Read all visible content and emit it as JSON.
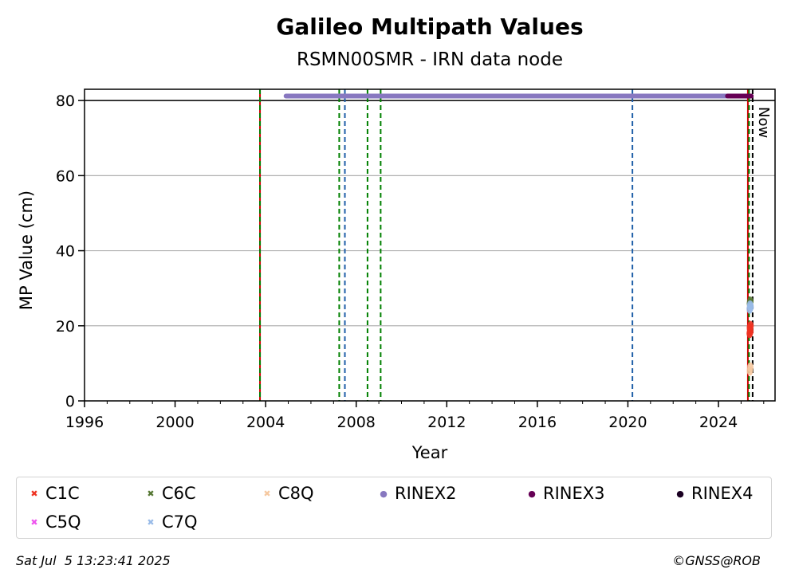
{
  "chart_data": {
    "type": "scatter",
    "title": "Galileo Multipath Values",
    "subtitle": "RSMN00SMR - IRN data node",
    "xlabel": "Year",
    "ylabel": "MP Value (cm)",
    "xlim": [
      1996,
      2026.5
    ],
    "ylim": [
      0,
      83
    ],
    "x_ticks": [
      1996,
      2000,
      2004,
      2008,
      2012,
      2016,
      2020,
      2024
    ],
    "y_ticks": [
      0,
      20,
      40,
      60,
      80
    ],
    "grid": "horizontal",
    "legend_position": "below",
    "reference_line_y": 80,
    "now_label": "Now",
    "now_x": 2025.51,
    "event_lines": [
      {
        "x": 2003.75,
        "color": "#cc0000",
        "style": "solid"
      },
      {
        "x": 2003.75,
        "color": "#008000",
        "style": "dashed"
      },
      {
        "x": 2007.25,
        "color": "#008000",
        "style": "dashed"
      },
      {
        "x": 2007.5,
        "color": "#1f5fa8",
        "style": "dashed"
      },
      {
        "x": 2008.5,
        "color": "#008000",
        "style": "dashed"
      },
      {
        "x": 2009.08,
        "color": "#008000",
        "style": "dashed"
      },
      {
        "x": 2020.2,
        "color": "#1f5fa8",
        "style": "dashed"
      },
      {
        "x": 2025.3,
        "color": "#cc0000",
        "style": "solid"
      },
      {
        "x": 2025.35,
        "color": "#008000",
        "style": "dashed"
      }
    ],
    "rinex_bars": [
      {
        "name": "RINEX2",
        "color": "#8878c0",
        "y": 81.2,
        "x_start": 2004.9,
        "x_end": 2025.3
      },
      {
        "name": "RINEX3",
        "color": "#660055",
        "y": 81.2,
        "x_start": 2024.4,
        "x_end": 2025.45
      }
    ],
    "series": [
      {
        "name": "C1C",
        "marker": "x",
        "color": "#ee3322",
        "points": [
          [
            2025.38,
            18.0
          ],
          [
            2025.4,
            19.0
          ],
          [
            2025.42,
            20.0
          ],
          [
            2025.39,
            19.5
          ],
          [
            2025.41,
            18.5
          ]
        ]
      },
      {
        "name": "C5Q",
        "marker": "x",
        "color": "#ee55ee",
        "points": []
      },
      {
        "name": "C6C",
        "marker": "x",
        "color": "#557733",
        "points": [
          [
            2025.39,
            26.0
          ],
          [
            2025.41,
            26.5
          ]
        ]
      },
      {
        "name": "C7Q",
        "marker": "x",
        "color": "#99bbe8",
        "points": [
          [
            2025.38,
            24.5
          ],
          [
            2025.4,
            25.5
          ],
          [
            2025.42,
            25.0
          ]
        ]
      },
      {
        "name": "C8Q",
        "marker": "x",
        "color": "#f5c8a0",
        "points": [
          [
            2025.39,
            8.0
          ],
          [
            2025.41,
            9.0
          ]
        ]
      },
      {
        "name": "RINEX2",
        "marker": "dot",
        "color": "#8878c0",
        "points": []
      },
      {
        "name": "RINEX3",
        "marker": "dot",
        "color": "#660055",
        "points": []
      },
      {
        "name": "RINEX4",
        "marker": "dot",
        "color": "#1a0022",
        "points": []
      }
    ]
  },
  "legend": [
    {
      "label": "C1C",
      "symbol": "✖",
      "color": "#ee3322"
    },
    {
      "label": "C6C",
      "symbol": "✖",
      "color": "#557733"
    },
    {
      "label": "C8Q",
      "symbol": "✖",
      "color": "#f5c8a0"
    },
    {
      "label": "RINEX2",
      "symbol": "●",
      "color": "#8878c0"
    },
    {
      "label": "RINEX3",
      "symbol": "●",
      "color": "#660055"
    },
    {
      "label": "RINEX4",
      "symbol": "●",
      "color": "#1a0022"
    },
    {
      "label": "C5Q",
      "symbol": "✖",
      "color": "#ee55ee"
    },
    {
      "label": "C7Q",
      "symbol": "✖",
      "color": "#99bbe8"
    }
  ],
  "footer": {
    "timestamp": "Sat Jul  5 13:23:41 2025",
    "credit": "©GNSS@ROB"
  }
}
